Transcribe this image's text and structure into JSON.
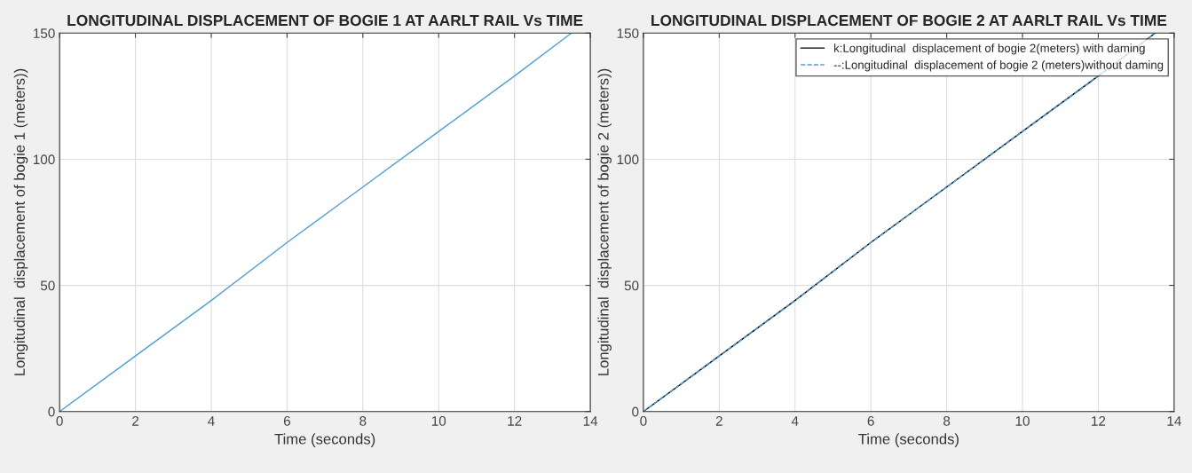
{
  "chart_data": [
    {
      "type": "line",
      "title": "LONGITUDINAL DISPLACEMENT OF BOGIE 1 AT AARLT RAIL Vs TIME",
      "xlabel": "Time (seconds)",
      "ylabel": "Longitudinal  displacement of bogie 1 (meters))",
      "x": [
        0,
        2,
        4,
        6,
        8,
        10,
        12,
        13.5
      ],
      "series": [
        {
          "color": "#4f9fd4",
          "values": [
            0,
            22,
            44,
            67,
            89,
            111,
            133,
            150
          ]
        }
      ],
      "xlim": [
        0,
        14
      ],
      "ylim": [
        0,
        150
      ],
      "xticks": [
        0,
        2,
        4,
        6,
        8,
        10,
        12,
        14
      ],
      "yticks": [
        0,
        50,
        100,
        150
      ],
      "grid": true,
      "line_style": "solid"
    },
    {
      "type": "line",
      "title": "LONGITUDINAL DISPLACEMENT OF BOGIE 2 AT AARLT RAIL Vs TIME",
      "xlabel": "Time (seconds)",
      "ylabel": "Longitudinal  displacement of bogie 2 (meters))",
      "x": [
        0,
        2,
        4,
        6,
        8,
        10,
        12,
        13.5
      ],
      "series": [
        {
          "name": "k:Longitudinal  displacement of bogie 2(meters) with daming",
          "color": "#000000",
          "line_style": "solid",
          "values": [
            0,
            22,
            44,
            67,
            89,
            111,
            133,
            150
          ]
        },
        {
          "name": "--:Longitudinal  displacement of bogie 2 (meters)without daming",
          "color": "#4f9fd4",
          "line_style": "dashed",
          "values": [
            0,
            22,
            44,
            67,
            89,
            111,
            133,
            150
          ]
        }
      ],
      "xlim": [
        0,
        14
      ],
      "ylim": [
        0,
        150
      ],
      "xticks": [
        0,
        2,
        4,
        6,
        8,
        10,
        12,
        14
      ],
      "yticks": [
        0,
        50,
        100,
        150
      ],
      "grid": true,
      "legend": "top right"
    }
  ]
}
